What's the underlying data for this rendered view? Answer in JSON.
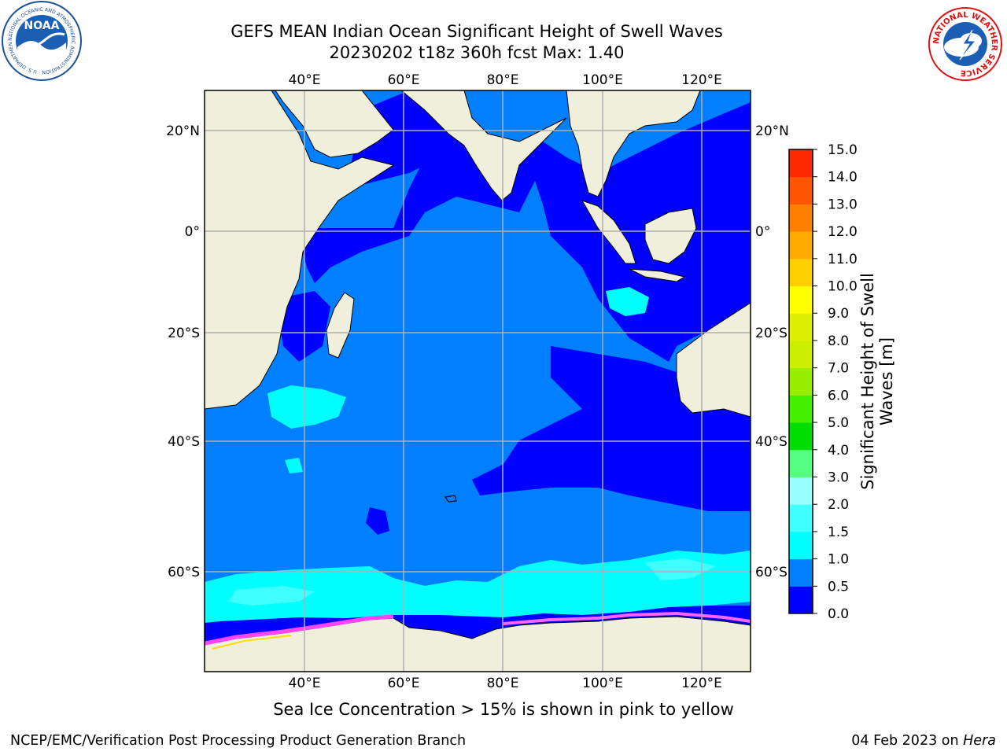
{
  "title": {
    "line1": "GEFS MEAN Indian Ocean Significant Height of Swell Waves",
    "line2": "20230202 t18z 360h fcst   Max: 1.40"
  },
  "map": {
    "lon_ticks": [
      "40°E",
      "60°E",
      "80°E",
      "100°E",
      "120°E"
    ],
    "lat_ticks": [
      "20°N",
      "0°",
      "20°S",
      "40°S",
      "60°S"
    ],
    "lon_range": [
      20,
      129
    ],
    "lat_range": [
      -72,
      27
    ],
    "ocean_color_default": "#0080ff",
    "ocean_color_low": "#0000ff",
    "ocean_color_mid": "#00ffff",
    "land_color": "#efefdc",
    "grid_color": "#b0b0b0"
  },
  "colorbar": {
    "label_line1": "Significant Height of Swell",
    "label_line2": "Waves [m]",
    "levels": [
      "0.0",
      "0.5",
      "1.0",
      "1.5",
      "2.0",
      "3.0",
      "4.0",
      "5.0",
      "6.0",
      "7.0",
      "8.0",
      "9.0",
      "10.0",
      "11.0",
      "12.0",
      "13.0",
      "14.0",
      "15.0"
    ],
    "colors": [
      "#0000ff",
      "#0080ff",
      "#00ffff",
      "#40ffff",
      "#99ffff",
      "#55ff80",
      "#00dd00",
      "#44ee00",
      "#99ee00",
      "#ccee00",
      "#ddee00",
      "#ffff00",
      "#ffd000",
      "#ffaa00",
      "#ff8000",
      "#ff5500",
      "#ff2a00",
      "#ff0000"
    ]
  },
  "logos": {
    "noaa_text": "NOAA",
    "noaa_ring_text": "NATIONAL OCEANIC AND ATMOSPHERIC ADMINISTRATION · U.S. DEPARTMENT OF COMMERCE",
    "nws_ring_text": "NATIONAL WEATHER SERVICE"
  },
  "caption": "Sea Ice Concentration > 15% is shown in pink to yellow",
  "footer": {
    "left": "NCEP/EMC/Verification Post Processing Product Generation Branch",
    "right_prefix": "04 Feb 2023 on ",
    "right_host": "Hera"
  }
}
